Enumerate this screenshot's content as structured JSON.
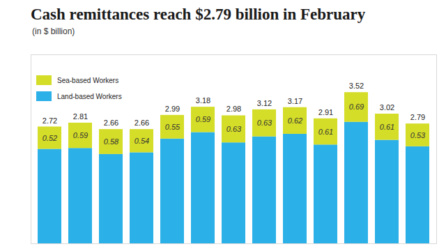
{
  "chart_data": {
    "type": "bar",
    "title": "Cash remittances reach $2.79 billion in February",
    "subtitle": "(in $ billion)",
    "categories": [
      null,
      null,
      null,
      null,
      null,
      null,
      null,
      null,
      null,
      null,
      null,
      null,
      null
    ],
    "series": [
      {
        "name": "Land-based Workers",
        "color": "#2bb0e8",
        "data_labels": false,
        "values": [
          2.2,
          2.22,
          2.08,
          2.12,
          2.44,
          2.59,
          2.35,
          2.49,
          2.55,
          2.3,
          2.83,
          2.41,
          2.26
        ]
      },
      {
        "name": "Sea-based Workers",
        "color": "#d4dd27",
        "data_labels": true,
        "values": [
          0.52,
          0.59,
          0.58,
          0.54,
          0.55,
          0.59,
          0.63,
          0.63,
          0.62,
          0.61,
          0.69,
          0.61,
          0.53
        ]
      }
    ],
    "totals": [
      2.72,
      2.81,
      2.66,
      2.66,
      2.99,
      3.18,
      2.98,
      3.12,
      3.17,
      2.91,
      3.52,
      3.02,
      2.79
    ],
    "stacked": true,
    "data_labels": true,
    "tick_labels": false,
    "grid": false,
    "ylim": [
      0,
      4.4
    ],
    "yticks": [],
    "legend": "top-left"
  }
}
